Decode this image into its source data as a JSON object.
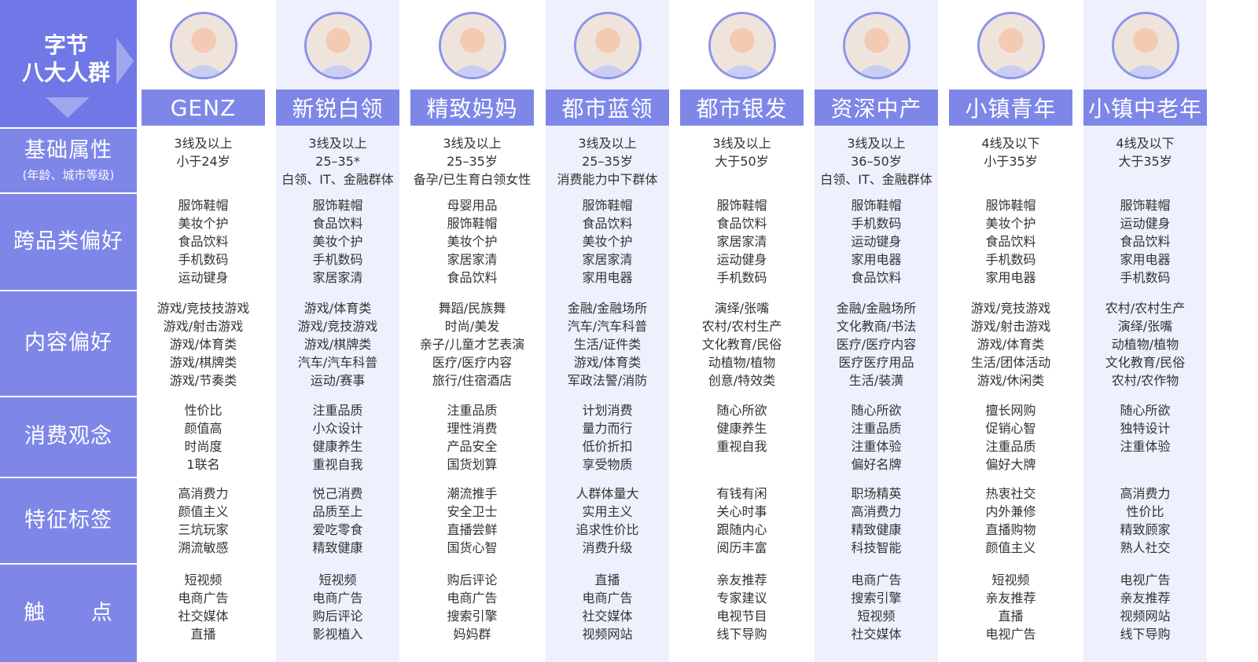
{
  "corner": {
    "line1": "字节",
    "line2": "八大人群"
  },
  "rows": [
    {
      "key": "basic",
      "label": "基础属性",
      "sub": "(年龄、城市等级)"
    },
    {
      "key": "cross",
      "label": "跨品类偏好",
      "sub": ""
    },
    {
      "key": "content",
      "label": "内容偏好",
      "sub": ""
    },
    {
      "key": "consume",
      "label": "消费观念",
      "sub": ""
    },
    {
      "key": "tags",
      "label": "特征标签",
      "sub": ""
    },
    {
      "key": "touch",
      "label": "触      点",
      "sub": ""
    }
  ],
  "colors": {
    "accent": "#7e87e8",
    "corner": "#6f78e6",
    "alt_bg": "#eef0fd",
    "avatar_ring": "#8c94ea"
  },
  "groups": [
    {
      "name": "GENZ",
      "avatar": "young-woman-avatar-icon",
      "basic": [
        "3线及以上",
        "小于24岁"
      ],
      "cross": [
        "服饰鞋帽",
        "美妆个护",
        "食品饮料",
        "手机数码",
        "运动键身"
      ],
      "content": [
        "游戏/竞技技游戏",
        "游戏/射击游戏",
        "游戏/体育类",
        "游戏/棋牌类",
        "游戏/节奏类"
      ],
      "consume": [
        "性价比",
        "颜值高",
        "时尚度",
        "1联名"
      ],
      "tags": [
        "高消费力",
        "颜值主义",
        "三坑玩家",
        "溯流敏感"
      ],
      "touch": [
        "短视频",
        "电商广告",
        "社交媒体",
        "直播"
      ]
    },
    {
      "name": "新锐白领",
      "avatar": "office-woman-avatar-icon",
      "basic": [
        "3线及以上",
        "25–35*",
        "白领、IT、金融群体"
      ],
      "cross": [
        "服饰鞋帽",
        "食品饮料",
        "美妆个护",
        "手机数码",
        "家居家清"
      ],
      "content": [
        "游戏/体育类",
        "游戏/竞技游戏",
        "游戏/棋牌类",
        "汽车/汽车科普",
        "运动/赛事"
      ],
      "consume": [
        "注重品质",
        "小众设计",
        "健康养生",
        "重视自我"
      ],
      "tags": [
        "悦己消费",
        "品质至上",
        "爱吃零食",
        "精致健康"
      ],
      "touch": [
        "短视频",
        "电商广告",
        "购后评论",
        "影视植入"
      ]
    },
    {
      "name": "精致妈妈",
      "avatar": "mother-avatar-icon",
      "basic": [
        "3线及以上",
        "25–35岁",
        "备孕/已生育白领女性"
      ],
      "cross": [
        "母婴用品",
        "服饰鞋帽",
        "美妆个护",
        "家居家清",
        "食品饮料"
      ],
      "content": [
        "舞蹈/民族舞",
        "时尚/美发",
        "亲子/儿童才艺表演",
        "医疗/医疗内容",
        "旅行/住宿酒店"
      ],
      "consume": [
        "注重品质",
        "理性消费",
        "产品安全",
        "国货划算"
      ],
      "tags": [
        "潮流推手",
        "安全卫士",
        "直播尝鲜",
        "国货心智"
      ],
      "touch": [
        "购后评论",
        "电商广告",
        "搜索引擎",
        "妈妈群"
      ]
    },
    {
      "name": "都市蓝领",
      "avatar": "worker-helmet-avatar-icon",
      "basic": [
        "3线及以上",
        "25–35岁",
        "消费能力中下群体"
      ],
      "cross": [
        "服饰鞋帽",
        "食品饮料",
        "美妆个护",
        "家居家清",
        "家用电器"
      ],
      "content": [
        "金融/金融场所",
        "汽车/汽车科普",
        "生活/证件类",
        "游戏/体育类",
        "军政法警/消防"
      ],
      "consume": [
        "计划消费",
        "量力而行",
        "低价折扣",
        "享受物质"
      ],
      "tags": [
        "人群体量大",
        "实用主义",
        "追求性价比",
        "消费升级"
      ],
      "touch": [
        "直播",
        "电商广告",
        "社交媒体",
        "视频网站"
      ]
    },
    {
      "name": "都市银发",
      "avatar": "elderly-couple-avatar-icon",
      "basic": [
        "3线及以上",
        "大于50岁"
      ],
      "cross": [
        "服饰鞋帽",
        "食品饮料",
        "家居家清",
        "运动健身",
        "手机数码"
      ],
      "content": [
        "演绎/张嘴",
        "农村/农村生产",
        "文化教育/民俗",
        "动植物/植物",
        "创意/特效类"
      ],
      "consume": [
        "随心所欲",
        "健康养生",
        "重视自我"
      ],
      "tags": [
        "有钱有闲",
        "关心时事",
        "跟随内心",
        "阅历丰富"
      ],
      "touch": [
        "亲友推荐",
        "专家建议",
        "电视节目",
        "线下导购"
      ]
    },
    {
      "name": "资深中产",
      "avatar": "businessman-avatar-icon",
      "basic": [
        "3线及以上",
        "36–50岁",
        "白领、IT、金融群体"
      ],
      "cross": [
        "服饰鞋帽",
        "手机数码",
        "运动键身",
        "家用电器",
        "食品饮料"
      ],
      "content": [
        "金融/金融场所",
        "文化教商/书法",
        "医疗/医疗内容",
        "医疗医疗用品",
        "生活/装潢"
      ],
      "consume": [
        "随心所欲",
        "注重品质",
        "注重体验",
        "偏好名牌"
      ],
      "tags": [
        "职场精英",
        "高消费力",
        "精致健康",
        "科技智能"
      ],
      "touch": [
        "电商广告",
        "搜索引擎",
        "短视频",
        "社交媒体"
      ]
    },
    {
      "name": "小镇青年",
      "avatar": "young-woman-hat-avatar-icon",
      "basic": [
        "4线及以下",
        "小于35岁"
      ],
      "cross": [
        "服饰鞋帽",
        "美妆个护",
        "食品饮料",
        "手机数码",
        "家用电器"
      ],
      "content": [
        "游戏/竞技游戏",
        "游戏/射击游戏",
        "游戏/体育类",
        "生活/团体活动",
        "游戏/休闲类"
      ],
      "consume": [
        "擅长网购",
        "促销心智",
        "注重品质",
        "偏好大牌"
      ],
      "tags": [
        "热衷社交",
        "内外兼修",
        "直播购物",
        "颜值主义"
      ],
      "touch": [
        "短视频",
        "亲友推荐",
        "直播",
        "电视广告"
      ]
    },
    {
      "name": "小镇中老年",
      "avatar": "farmer-hat-avatar-icon",
      "basic": [
        "4线及以下",
        "大于35岁"
      ],
      "cross": [
        "服饰鞋帽",
        "运动健身",
        "食品饮料",
        "家用电器",
        "手机数码"
      ],
      "content": [
        "农村/农村生产",
        "演绎/张嘴",
        "动植物/植物",
        "文化教育/民俗",
        "农村/农作物"
      ],
      "consume": [
        "随心所欲",
        "独特设计",
        "注重体验"
      ],
      "tags": [
        "高消费力",
        "性价比",
        "精致顾家",
        "熟人社交"
      ],
      "touch": [
        "电视广告",
        "亲友推荐",
        "视频网站",
        "线下导购"
      ]
    }
  ]
}
